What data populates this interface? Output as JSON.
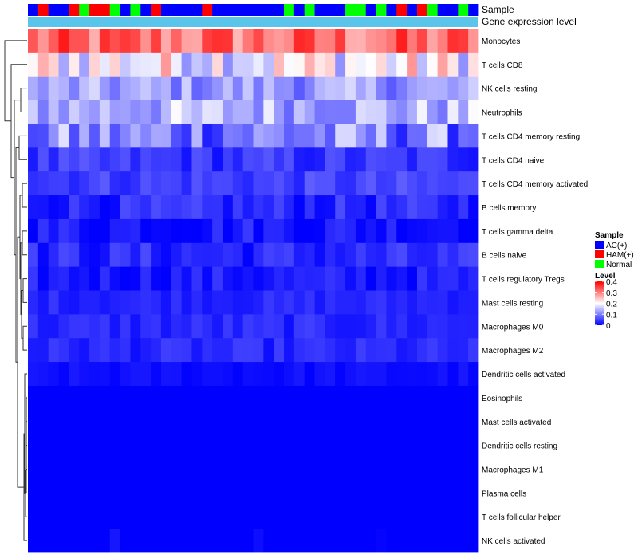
{
  "chart_data": {
    "type": "heatmap",
    "title": "",
    "annotation_rows": [
      "Sample",
      "Gene expression level"
    ],
    "sample_groups": [
      "AC(+)",
      "HAM(+)",
      "Normal"
    ],
    "sample_group_colors": [
      "#0000ff",
      "#ff0000",
      "#00ff00"
    ],
    "column_samples": [
      0,
      1,
      0,
      0,
      1,
      2,
      1,
      1,
      2,
      0,
      2,
      0,
      1,
      0,
      0,
      0,
      0,
      1,
      0,
      0,
      0,
      0,
      0,
      0,
      0,
      2,
      0,
      2,
      0,
      0,
      0,
      2,
      2,
      0,
      2,
      0,
      1,
      0,
      1,
      2,
      0,
      0,
      2,
      0
    ],
    "expression_level_color": "#5bc4ea",
    "rows": [
      "Monocytes",
      "T cells CD8",
      "NK cells resting",
      "Neutrophils",
      "T cells CD4 memory resting",
      "T cells CD4 naive",
      "T cells CD4 memory activated",
      "B cells memory",
      "T cells gamma delta",
      "B cells naive",
      "T cells regulatory  Tregs",
      "Mast cells resting",
      "Macrophages M0",
      "Macrophages M2",
      "Dendritic cells activated",
      "Eosinophils",
      "Mast cells activated",
      "Dendritic cells resting",
      "Macrophages M1",
      "Plasma cells",
      "T cells follicular helper",
      "NK cells activated"
    ],
    "row_means": [
      0.31,
      0.2,
      0.12,
      0.14,
      0.1,
      0.04,
      0.05,
      0.03,
      0.02,
      0.03,
      0.02,
      0.03,
      0.03,
      0.03,
      0.01,
      0.0,
      0.0,
      0.0,
      0.0,
      0.0,
      0.0,
      0.005
    ],
    "row_spread": [
      0.07,
      0.09,
      0.05,
      0.06,
      0.08,
      0.03,
      0.025,
      0.03,
      0.03,
      0.03,
      0.025,
      0.015,
      0.02,
      0.02,
      0.01,
      0.0,
      0.0,
      0.0,
      0.0,
      0.0,
      0.0,
      0.015
    ],
    "value_range": [
      0,
      0.4
    ],
    "n_columns": 44,
    "legend": {
      "sample_title": "Sample",
      "level_title": "Level",
      "level_ticks": [
        "0.4",
        "0.3",
        "0.2",
        "0.1",
        "0"
      ],
      "level_tick_values": [
        0.4,
        0.3,
        0.2,
        0.1,
        0
      ],
      "colors": {
        "low": "#0000ff",
        "mid": "#ffffff",
        "high": "#ff0000"
      },
      "position": "right"
    }
  }
}
